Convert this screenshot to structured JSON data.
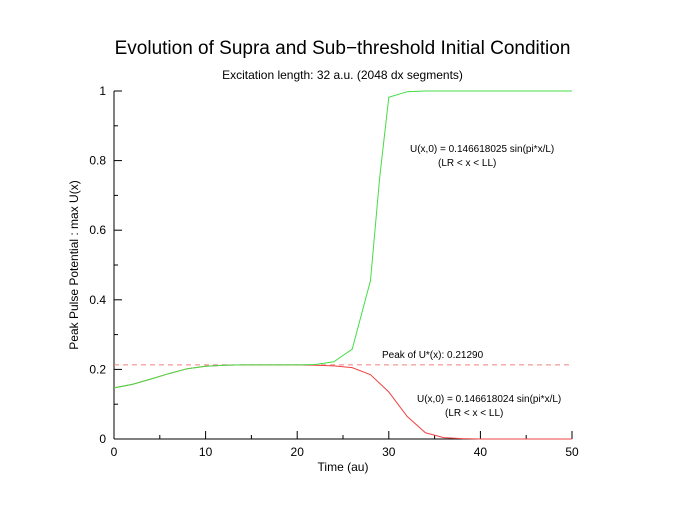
{
  "chart_data": {
    "type": "line",
    "title": "Evolution of Supra and Sub−threshold Initial Condition",
    "subtitle": "Excitation length: 32 a.u. (2048 dx segments)",
    "xlabel": "Time (au)",
    "ylabel": "Peak Pulse Potential : max U(x)",
    "xlim": [
      0,
      50
    ],
    "ylim": [
      0,
      1
    ],
    "xticks": [
      0,
      10,
      20,
      30,
      40,
      50
    ],
    "yticks": [
      0,
      0.2,
      0.4,
      0.6,
      0.8,
      1
    ],
    "xtick_labels": [
      "0",
      "10",
      "20",
      "30",
      "40",
      "50"
    ],
    "ytick_labels": [
      "0",
      "0.2",
      "0.4",
      "0.6",
      "0.8",
      "1"
    ],
    "grid": false,
    "series": [
      {
        "color": "#44dd44",
        "x": [
          0,
          2,
          4,
          6,
          8,
          10,
          12,
          14,
          16,
          18,
          20,
          22,
          24,
          26,
          28,
          29,
          30,
          32,
          34,
          36,
          38,
          40,
          45,
          50
        ],
        "y": [
          0.147,
          0.157,
          0.172,
          0.188,
          0.202,
          0.209,
          0.212,
          0.213,
          0.213,
          0.213,
          0.213,
          0.214,
          0.222,
          0.258,
          0.455,
          0.75,
          0.982,
          0.998,
          1.0,
          1.0,
          1.0,
          1.0,
          1.0,
          1.0
        ]
      },
      {
        "color": "#ee4444",
        "x": [
          0,
          2,
          4,
          6,
          8,
          10,
          12,
          14,
          16,
          18,
          20,
          22,
          24,
          26,
          28,
          30,
          32,
          34,
          36,
          38,
          40,
          45,
          50
        ],
        "y": [
          0.147,
          0.157,
          0.172,
          0.188,
          0.202,
          0.209,
          0.212,
          0.213,
          0.213,
          0.213,
          0.213,
          0.212,
          0.21,
          0.205,
          0.185,
          0.135,
          0.065,
          0.018,
          0.004,
          0.001,
          0.0,
          0.0,
          0.0
        ]
      }
    ],
    "threshold": {
      "y": 0.2129,
      "color": "#f08080",
      "label": "Peak of U*(x): 0.21290"
    },
    "annotations": [
      {
        "lines": [
          "U(x,0) = 0.146618025 sin(pi*x/L)",
          "(LR < x < LL)"
        ]
      },
      {
        "lines": [
          "U(x,0) = 0.146618024 sin(pi*x/L)",
          "(LR < x < LL)"
        ]
      }
    ]
  }
}
